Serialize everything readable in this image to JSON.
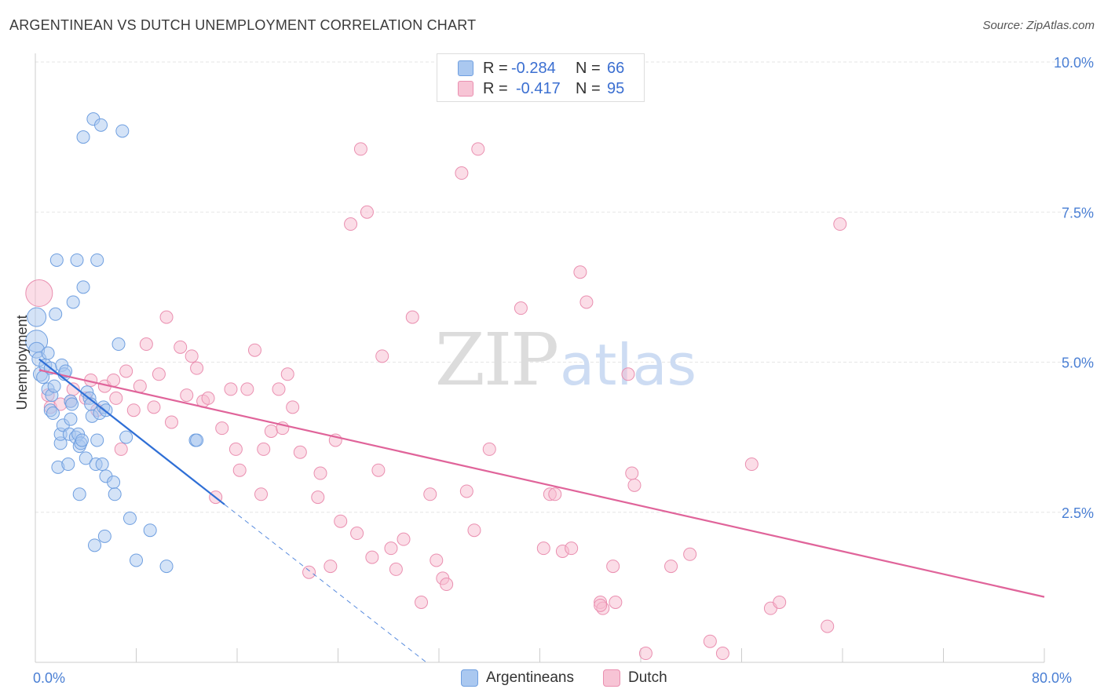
{
  "header": {
    "title": "ARGENTINEAN VS DUTCH UNEMPLOYMENT CORRELATION CHART",
    "source": "Source: ZipAtlas.com"
  },
  "watermark": {
    "zip": "ZIP",
    "atlas": "atlas"
  },
  "legend_top": {
    "rows": [
      {
        "r_label": "R =",
        "r_value": "-0.284",
        "n_label": "N =",
        "n_value": "66"
      },
      {
        "r_label": "R =",
        "r_value": "-0.417",
        "n_label": "N =",
        "n_value": "95"
      }
    ]
  },
  "legend_bottom": {
    "items": [
      {
        "label": "Argentineans"
      },
      {
        "label": "Dutch"
      }
    ]
  },
  "colors": {
    "blue_fill": "#aac8f0",
    "blue_stroke": "#6f9fe0",
    "blue_line": "#2f6fd6",
    "pink_fill": "#f7bcd0",
    "pink_stroke": "#ea8fb0",
    "pink_line": "#e0649a",
    "grid": "#e6e6e6",
    "axis": "#cccccc",
    "tick_label": "#4a7fd4"
  },
  "chart_data": {
    "type": "scatter",
    "title": "ARGENTINEAN VS DUTCH UNEMPLOYMENT CORRELATION CHART",
    "xlabel": "",
    "ylabel": "Unemployment",
    "xlim": [
      0,
      80
    ],
    "ylim": [
      0,
      10
    ],
    "x_ticks": [
      {
        "value": 0,
        "label": "0.0%"
      },
      {
        "value": 80,
        "label": "80.0%"
      }
    ],
    "y_ticks": [
      {
        "value": 2.5,
        "label": "2.5%"
      },
      {
        "value": 5.0,
        "label": "5.0%"
      },
      {
        "value": 7.5,
        "label": "7.5%"
      },
      {
        "value": 10.0,
        "label": "10.0%"
      }
    ],
    "grid": true,
    "legend_position": "bottom",
    "series": [
      {
        "name": "Argentineans",
        "r": -0.284,
        "n": 66,
        "trend": {
          "x": [
            0.3,
            15.0
          ],
          "y": [
            5.05,
            2.63
          ]
        },
        "trend_extension": {
          "x": [
            15.0,
            31.0
          ],
          "y": [
            2.63,
            0.0
          ]
        },
        "points": [
          [
            0.1,
            5.35,
            14
          ],
          [
            0.1,
            5.75,
            12
          ],
          [
            0.1,
            5.2,
            10
          ],
          [
            0.3,
            5.05,
            9
          ],
          [
            0.4,
            4.8,
            9
          ],
          [
            0.6,
            4.75,
            8
          ],
          [
            0.8,
            4.95,
            8
          ],
          [
            1.0,
            5.15,
            8
          ],
          [
            1.0,
            4.55,
            8
          ],
          [
            1.2,
            4.9,
            8
          ],
          [
            1.2,
            4.2,
            8
          ],
          [
            1.3,
            4.45,
            8
          ],
          [
            1.4,
            4.15,
            8
          ],
          [
            1.5,
            4.6,
            8
          ],
          [
            1.6,
            5.8,
            8
          ],
          [
            1.7,
            6.7,
            8
          ],
          [
            1.8,
            3.25,
            8
          ],
          [
            2.0,
            3.65,
            8
          ],
          [
            2.0,
            3.8,
            8
          ],
          [
            2.1,
            4.95,
            8
          ],
          [
            2.2,
            3.95,
            8
          ],
          [
            2.3,
            4.8,
            8
          ],
          [
            2.4,
            4.85,
            8
          ],
          [
            2.6,
            3.3,
            8
          ],
          [
            2.7,
            3.8,
            8
          ],
          [
            2.8,
            4.35,
            8
          ],
          [
            2.8,
            4.05,
            8
          ],
          [
            2.9,
            4.3,
            8
          ],
          [
            3.0,
            6.0,
            8
          ],
          [
            3.2,
            3.75,
            8
          ],
          [
            3.3,
            6.7,
            8
          ],
          [
            3.4,
            3.8,
            8
          ],
          [
            3.5,
            3.6,
            8
          ],
          [
            3.5,
            2.8,
            8
          ],
          [
            3.6,
            3.65,
            8
          ],
          [
            3.7,
            3.7,
            8
          ],
          [
            3.8,
            6.25,
            8
          ],
          [
            3.8,
            8.75,
            8
          ],
          [
            4.0,
            3.4,
            8
          ],
          [
            4.1,
            4.5,
            8
          ],
          [
            4.3,
            4.4,
            8
          ],
          [
            4.4,
            4.3,
            8
          ],
          [
            4.5,
            4.1,
            8
          ],
          [
            4.6,
            9.05,
            8
          ],
          [
            4.7,
            1.95,
            8
          ],
          [
            4.8,
            3.3,
            8
          ],
          [
            4.9,
            3.7,
            8
          ],
          [
            4.9,
            6.7,
            8
          ],
          [
            5.1,
            4.15,
            8
          ],
          [
            5.2,
            8.95,
            8
          ],
          [
            5.3,
            3.3,
            8
          ],
          [
            5.4,
            4.25,
            8
          ],
          [
            5.5,
            2.1,
            8
          ],
          [
            5.6,
            4.2,
            8
          ],
          [
            5.6,
            3.1,
            8
          ],
          [
            6.2,
            3.0,
            8
          ],
          [
            6.3,
            2.8,
            8
          ],
          [
            6.6,
            5.3,
            8
          ],
          [
            6.9,
            8.85,
            8
          ],
          [
            7.2,
            3.75,
            8
          ],
          [
            7.5,
            2.4,
            8
          ],
          [
            8.0,
            1.7,
            8
          ],
          [
            9.1,
            2.2,
            8
          ],
          [
            10.4,
            1.6,
            8
          ],
          [
            12.7,
            3.7,
            8
          ],
          [
            12.8,
            3.7,
            8
          ]
        ]
      },
      {
        "name": "Dutch",
        "r": -0.417,
        "n": 95,
        "trend": {
          "x": [
            0.3,
            80.0
          ],
          "y": [
            4.87,
            1.09
          ]
        },
        "points": [
          [
            0.3,
            6.15,
            17
          ],
          [
            1.0,
            4.45,
            8
          ],
          [
            1.2,
            4.25,
            8
          ],
          [
            2.0,
            4.3,
            8
          ],
          [
            2.8,
            4.35,
            8
          ],
          [
            3.0,
            4.55,
            8
          ],
          [
            4.0,
            4.4,
            8
          ],
          [
            4.4,
            4.7,
            8
          ],
          [
            4.9,
            4.2,
            8
          ],
          [
            5.5,
            4.6,
            8
          ],
          [
            6.2,
            4.7,
            8
          ],
          [
            6.4,
            4.4,
            8
          ],
          [
            6.8,
            3.55,
            8
          ],
          [
            7.2,
            4.85,
            8
          ],
          [
            7.8,
            4.2,
            8
          ],
          [
            8.3,
            4.6,
            8
          ],
          [
            8.8,
            5.3,
            8
          ],
          [
            9.4,
            4.25,
            8
          ],
          [
            9.8,
            4.8,
            8
          ],
          [
            10.4,
            5.75,
            8
          ],
          [
            10.8,
            4.0,
            8
          ],
          [
            11.5,
            5.25,
            8
          ],
          [
            12.0,
            4.45,
            8
          ],
          [
            12.4,
            5.1,
            8
          ],
          [
            12.8,
            4.9,
            8
          ],
          [
            13.3,
            4.35,
            8
          ],
          [
            13.7,
            4.4,
            8
          ],
          [
            14.3,
            2.75,
            8
          ],
          [
            14.8,
            3.9,
            8
          ],
          [
            15.5,
            4.55,
            8
          ],
          [
            15.9,
            3.55,
            8
          ],
          [
            16.2,
            3.2,
            8
          ],
          [
            16.8,
            4.55,
            8
          ],
          [
            17.4,
            5.2,
            8
          ],
          [
            17.9,
            2.8,
            8
          ],
          [
            18.1,
            3.55,
            8
          ],
          [
            18.7,
            3.85,
            8
          ],
          [
            19.3,
            4.55,
            8
          ],
          [
            19.6,
            3.9,
            8
          ],
          [
            20.0,
            4.8,
            8
          ],
          [
            20.4,
            4.25,
            8
          ],
          [
            21.0,
            3.5,
            8
          ],
          [
            21.7,
            1.5,
            8
          ],
          [
            22.4,
            2.75,
            8
          ],
          [
            22.6,
            3.15,
            8
          ],
          [
            23.4,
            1.6,
            8
          ],
          [
            23.8,
            3.7,
            8
          ],
          [
            24.2,
            2.35,
            8
          ],
          [
            25.0,
            7.3,
            8
          ],
          [
            25.5,
            2.15,
            8
          ],
          [
            25.8,
            8.55,
            8
          ],
          [
            26.3,
            7.5,
            8
          ],
          [
            26.7,
            1.75,
            8
          ],
          [
            27.2,
            3.2,
            8
          ],
          [
            27.5,
            5.1,
            8
          ],
          [
            28.2,
            1.9,
            8
          ],
          [
            28.6,
            1.55,
            8
          ],
          [
            29.2,
            2.05,
            8
          ],
          [
            29.9,
            5.75,
            8
          ],
          [
            30.6,
            1.0,
            8
          ],
          [
            31.3,
            2.8,
            8
          ],
          [
            31.8,
            1.7,
            8
          ],
          [
            32.3,
            1.4,
            8
          ],
          [
            32.6,
            1.3,
            8
          ],
          [
            33.8,
            8.15,
            8
          ],
          [
            34.2,
            2.85,
            8
          ],
          [
            34.8,
            2.2,
            8
          ],
          [
            35.1,
            8.55,
            8
          ],
          [
            36.0,
            3.55,
            8
          ],
          [
            38.5,
            5.9,
            8
          ],
          [
            40.3,
            1.9,
            8
          ],
          [
            40.8,
            2.8,
            8
          ],
          [
            41.2,
            2.8,
            8
          ],
          [
            41.8,
            1.85,
            8
          ],
          [
            42.5,
            1.9,
            8
          ],
          [
            43.2,
            6.5,
            8
          ],
          [
            43.7,
            6.0,
            8
          ],
          [
            44.8,
            1.0,
            8
          ],
          [
            45.0,
            0.9,
            8
          ],
          [
            45.8,
            1.6,
            8
          ],
          [
            46.0,
            1.0,
            8
          ],
          [
            47.0,
            4.8,
            8
          ],
          [
            47.3,
            3.15,
            8
          ],
          [
            47.5,
            2.95,
            8
          ],
          [
            48.4,
            0.15,
            8
          ],
          [
            50.4,
            1.6,
            8
          ],
          [
            51.9,
            1.8,
            8
          ],
          [
            53.5,
            0.35,
            8
          ],
          [
            54.5,
            0.15,
            8
          ],
          [
            56.8,
            3.3,
            8
          ],
          [
            58.3,
            0.9,
            8
          ],
          [
            59.0,
            1.0,
            8
          ],
          [
            62.8,
            0.6,
            8
          ],
          [
            63.8,
            7.3,
            8
          ],
          [
            44.8,
            0.95,
            8
          ]
        ]
      }
    ]
  }
}
